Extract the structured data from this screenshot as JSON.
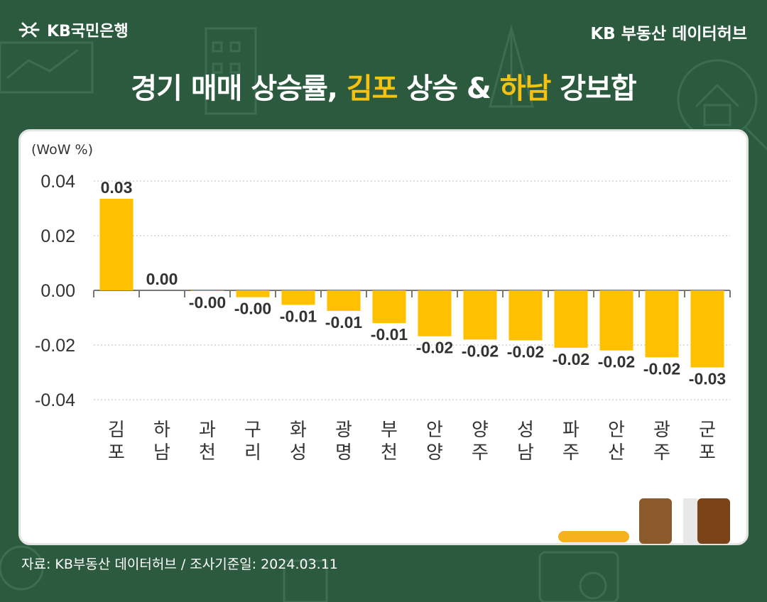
{
  "header": {
    "logo_text": "KB국민은행",
    "hub_text": "KB 부동산  데이터허브"
  },
  "title": {
    "part1": "경기 매매 상승률, ",
    "highlight1": "김포",
    "part2": " 상승 & ",
    "highlight2": "하남",
    "part3": " 강보합"
  },
  "footer": {
    "source": "자료: KB부동산 데이터허브 / 조사기준일: 2024.03.11"
  },
  "colors": {
    "background": "#2c5a3f",
    "bar": "#ffc000",
    "highlight": "#f5c211"
  },
  "chart_data": {
    "type": "bar",
    "unit_label": "(WoW %)",
    "categories": [
      "김\n포",
      "하\n남",
      "과\n천",
      "구\n리",
      "화\n성",
      "광\n명",
      "부\n천",
      "안\n양",
      "양\n주",
      "성\n남",
      "파\n주",
      "안\n산",
      "광\n주",
      "군\n포"
    ],
    "values": [
      0.0335,
      0.0,
      -0.0002,
      -0.0025,
      -0.0053,
      -0.0075,
      -0.012,
      -0.0168,
      -0.018,
      -0.0183,
      -0.021,
      -0.022,
      -0.0245,
      -0.0282
    ],
    "data_labels": [
      "0.03",
      "0.00",
      "-0.00",
      "-0.00",
      "-0.01",
      "-0.01",
      "-0.01",
      "-0.02",
      "-0.02",
      "-0.02",
      "-0.02",
      "-0.02",
      "-0.02",
      "-0.03"
    ],
    "ylim": [
      -0.04,
      0.04
    ],
    "yticks": [
      "0.04",
      "0.02",
      "0.00",
      "-0.02",
      "-0.04"
    ],
    "grid": true
  }
}
